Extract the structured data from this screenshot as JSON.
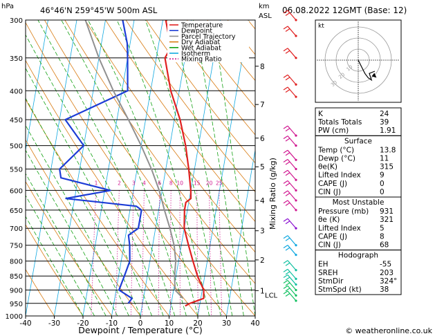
{
  "header": {
    "hpa_label": "hPa",
    "location": "46°46'N  259°45'W  500m  ASL",
    "km_label": "km",
    "asl_label": "ASL",
    "datetime": "06.08.2022  12GMT  (Base: 12)"
  },
  "chart_data": {
    "type": "skew-T log-P diagram",
    "pressure_ticks": [
      300,
      350,
      400,
      450,
      500,
      550,
      600,
      650,
      700,
      750,
      800,
      850,
      900,
      950,
      1000
    ],
    "temperature_ticks": [
      -40,
      -30,
      -20,
      -10,
      0,
      10,
      20,
      30,
      40
    ],
    "xlabel": "Dewpoint / Temperature (°C)",
    "ylabel_right": "Mixing Ratio (g/kg)",
    "height_km_ticks": [
      {
        "label": "8",
        "p": 362
      },
      {
        "label": "7",
        "p": 423
      },
      {
        "label": "6",
        "p": 485
      },
      {
        "label": "5",
        "p": 545
      },
      {
        "label": "4",
        "p": 625
      },
      {
        "label": "3",
        "p": 707
      },
      {
        "label": "2",
        "p": 796
      },
      {
        "label": "1",
        "p": 902
      }
    ],
    "lcl_label": "LCL",
    "lcl_p": 918,
    "mixing_ratio_labels": [
      "1",
      "2",
      "3",
      "4",
      "6",
      "8",
      "10",
      "15",
      "20",
      "25"
    ],
    "mixing_ratio_label_p": 590,
    "legend": [
      {
        "label": "Temperature",
        "color": "#e02020",
        "dash": ""
      },
      {
        "label": "Dewpoint",
        "color": "#1c3cd6",
        "dash": ""
      },
      {
        "label": "Parcel Trajectory",
        "color": "#909090",
        "dash": ""
      },
      {
        "label": "Dry Adiabat",
        "color": "#d87a10",
        "dash": ""
      },
      {
        "label": "Wet Adiabat",
        "color": "#10a010",
        "dash": ""
      },
      {
        "label": "Isotherm",
        "color": "#10a8e0",
        "dash": ""
      },
      {
        "label": "Mixing Ratio",
        "color": "#d01890",
        "dash": "2,2"
      }
    ],
    "series": [
      {
        "name": "Temperature",
        "color": "#e02020",
        "points": [
          [
            300,
            -9
          ],
          [
            320,
            -7
          ],
          [
            340,
            -6
          ],
          [
            350,
            -7
          ],
          [
            400,
            -3
          ],
          [
            450,
            2
          ],
          [
            500,
            5.5
          ],
          [
            550,
            8
          ],
          [
            600,
            10
          ],
          [
            620,
            10.5
          ],
          [
            630,
            9
          ],
          [
            650,
            9
          ],
          [
            700,
            10
          ],
          [
            750,
            12.5
          ],
          [
            800,
            15
          ],
          [
            850,
            17.5
          ],
          [
            900,
            20.5
          ],
          [
            931,
            21
          ],
          [
            950,
            16.5
          ],
          [
            960,
            15
          ]
        ]
      },
      {
        "name": "Dewpoint",
        "color": "#1c3cd6",
        "points": [
          [
            300,
            -24
          ],
          [
            330,
            -21
          ],
          [
            350,
            -20
          ],
          [
            400,
            -18
          ],
          [
            450,
            -38
          ],
          [
            500,
            -30
          ],
          [
            550,
            -37
          ],
          [
            570,
            -36
          ],
          [
            600,
            -18
          ],
          [
            620,
            -33
          ],
          [
            640,
            -8
          ],
          [
            650,
            -6
          ],
          [
            700,
            -6
          ],
          [
            720,
            -9
          ],
          [
            750,
            -8
          ],
          [
            800,
            -7
          ],
          [
            850,
            -8
          ],
          [
            900,
            -9
          ],
          [
            931,
            -4
          ],
          [
            950,
            -5
          ]
        ]
      },
      {
        "name": "Parcel Trajectory",
        "color": "#909090",
        "points": [
          [
            300,
            -37
          ],
          [
            350,
            -30
          ],
          [
            400,
            -23
          ],
          [
            450,
            -16
          ],
          [
            500,
            -10
          ],
          [
            550,
            -5
          ],
          [
            600,
            -1
          ],
          [
            650,
            2
          ],
          [
            700,
            5
          ],
          [
            750,
            7.5
          ],
          [
            800,
            9
          ],
          [
            850,
            9.5
          ],
          [
            900,
            10.5
          ],
          [
            931,
            13.8
          ]
        ]
      }
    ],
    "wind_barbs": [
      {
        "p": 300,
        "color": "#e02020"
      },
      {
        "p": 320,
        "color": "#e02020"
      },
      {
        "p": 350,
        "color": "#e02020"
      },
      {
        "p": 390,
        "color": "#e02020"
      },
      {
        "p": 410,
        "color": "#e02020"
      },
      {
        "p": 480,
        "color": "#d01890"
      },
      {
        "p": 500,
        "color": "#d01890"
      },
      {
        "p": 530,
        "color": "#d01890"
      },
      {
        "p": 550,
        "color": "#d01890"
      },
      {
        "p": 575,
        "color": "#d01890"
      },
      {
        "p": 600,
        "color": "#d01890"
      },
      {
        "p": 625,
        "color": "#d01890"
      },
      {
        "p": 650,
        "color": "#d01890"
      },
      {
        "p": 700,
        "color": "#8a10d0"
      },
      {
        "p": 750,
        "color": "#10a8e0"
      },
      {
        "p": 780,
        "color": "#10a8e0"
      },
      {
        "p": 830,
        "color": "#10c0a0"
      },
      {
        "p": 860,
        "color": "#10c0a0"
      },
      {
        "p": 880,
        "color": "#10c0a0"
      },
      {
        "p": 900,
        "color": "#10c060"
      },
      {
        "p": 920,
        "color": "#10c060"
      },
      {
        "p": 940,
        "color": "#10c060"
      }
    ],
    "hodograph": {
      "unit_label": "kt",
      "ring_labels": [
        "10",
        "20",
        "30"
      ],
      "trace": [
        [
          0,
          0
        ],
        [
          3,
          -6
        ],
        [
          6,
          -12
        ],
        [
          9,
          -16
        ],
        [
          12,
          -18
        ],
        [
          10,
          -12
        ],
        [
          15,
          -10
        ]
      ],
      "storm_motion": [
        14,
        -14
      ]
    }
  },
  "stats": {
    "indices": [
      {
        "label": "K",
        "value": "24"
      },
      {
        "label": "Totals Totals",
        "value": "39"
      },
      {
        "label": "PW (cm)",
        "value": "1.91"
      }
    ],
    "surface": {
      "title": "Surface",
      "rows": [
        {
          "label": "Temp (°C)",
          "value": "13.8"
        },
        {
          "label": "Dewp (°C)",
          "value": "11"
        },
        {
          "label": "θe(K)",
          "value": "315"
        },
        {
          "label": "Lifted Index",
          "value": "9"
        },
        {
          "label": "CAPE (J)",
          "value": "0"
        },
        {
          "label": "CIN (J)",
          "value": "0"
        }
      ]
    },
    "most_unstable": {
      "title": "Most Unstable",
      "rows": [
        {
          "label": "Pressure (mb)",
          "value": "931"
        },
        {
          "label": "θe (K)",
          "value": "321"
        },
        {
          "label": "Lifted Index",
          "value": "5"
        },
        {
          "label": "CAPE (J)",
          "value": "8"
        },
        {
          "label": "CIN (J)",
          "value": "68"
        }
      ]
    },
    "hodograph": {
      "title": "Hodograph",
      "rows": [
        {
          "label": "EH",
          "value": "-55"
        },
        {
          "label": "SREH",
          "value": "203"
        },
        {
          "label": "StmDir",
          "value": "324°"
        },
        {
          "label": "StmSpd (kt)",
          "value": "38"
        }
      ]
    }
  },
  "footer": {
    "copyright": "© weatheronline.co.uk"
  }
}
